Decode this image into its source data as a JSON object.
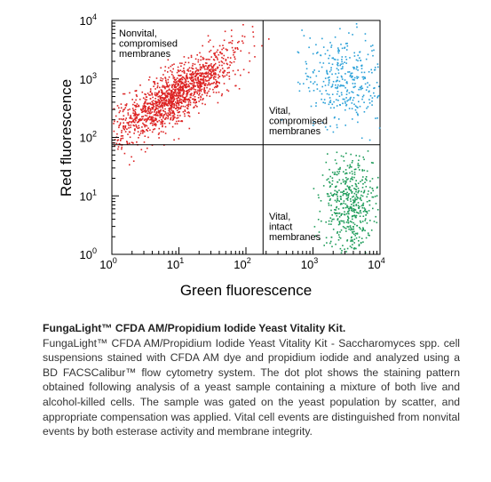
{
  "chart_data": {
    "type": "scatter",
    "title": "",
    "xlabel": "Green fluorescence",
    "ylabel": "Red fluorescence",
    "x_scale": "log",
    "y_scale": "log",
    "xlim": [
      1,
      10000
    ],
    "ylim": [
      1,
      10000
    ],
    "x_ticks": [
      {
        "value": 1,
        "base": "10",
        "exp": "0"
      },
      {
        "value": 10,
        "base": "10",
        "exp": "1"
      },
      {
        "value": 100,
        "base": "10",
        "exp": "2"
      },
      {
        "value": 1000,
        "base": "10",
        "exp": "3"
      },
      {
        "value": 10000,
        "base": "10",
        "exp": "4"
      }
    ],
    "y_ticks": [
      {
        "value": 1,
        "base": "10",
        "exp": "0"
      },
      {
        "value": 10,
        "base": "10",
        "exp": "1"
      },
      {
        "value": 100,
        "base": "10",
        "exp": "2"
      },
      {
        "value": 1000,
        "base": "10",
        "exp": "3"
      },
      {
        "value": 10000,
        "base": "10",
        "exp": "4"
      }
    ],
    "quadrant_gates": {
      "x": 180,
      "y": 75
    },
    "quadrant_labels": [
      {
        "lines": [
          "Nonvital,",
          "compromised",
          "membranes"
        ]
      },
      {
        "lines": [
          "Vital,",
          "compromised",
          "membranes"
        ]
      },
      {
        "lines": [
          "Vital,",
          "intact",
          "membranes"
        ]
      }
    ],
    "grid": false,
    "legend": "none",
    "series": [
      {
        "color": "#dd2222",
        "population": "nonvital",
        "x_center": 8,
        "y_center": 500,
        "x_spread": 0.45,
        "y_spread": 0.35,
        "approx_count": 1500
      },
      {
        "color": "#2aa0d8",
        "population": "vital-compromised",
        "x_center": 2800,
        "y_center": 1000,
        "x_spread": 0.3,
        "y_spread": 0.4,
        "approx_count": 350
      },
      {
        "color": "#1e9c5a",
        "population": "vital-intact",
        "x_center": 3500,
        "y_center": 8,
        "x_spread": 0.2,
        "y_spread": 0.45,
        "approx_count": 500
      }
    ]
  },
  "caption": {
    "title": "FungaLight™ CFDA AM/Propidium Iodide Yeast Vitality Kit.",
    "body": "FungaLight™ CFDA AM/Propidium Iodide Yeast Vitality Kit - Saccharomyces spp. cell suspensions stained with CFDA AM dye and propidium iodide and analyzed using a BD FACSCalibur™ flow cytometry system. The dot plot shows the staining pattern obtained following analysis of a yeast sample containing a mixture of both live and alcohol-killed cells. The sample was gated on the yeast population by scatter, and appropriate compensation was applied. Vital cell events are distinguished from nonvital events by both esterase activity and membrane integrity."
  }
}
